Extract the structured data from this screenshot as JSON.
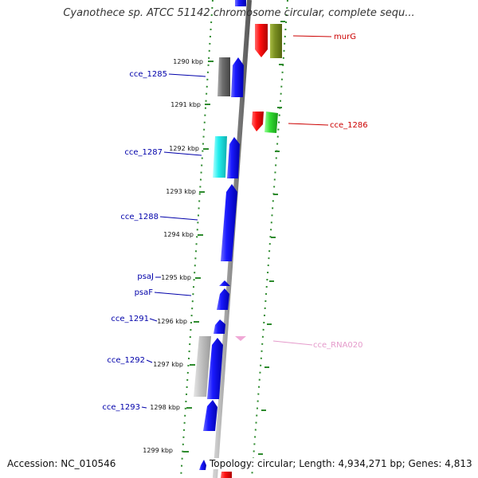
{
  "title": "Cyanothece sp. ATCC 51142 chromosome circular, complete sequ...",
  "footer": {
    "accession": "Accession: NC_010546",
    "summary": "Topology: circular; Length: 4,934,271 bp; Genes: 4,813"
  },
  "colors": {
    "backbone": "#8c8c8c",
    "tick": "#2e8b2e",
    "label_blue": "#0000aa",
    "label_red": "#cc0000",
    "label_pink": "#e59acb"
  },
  "ticks": [
    "1290 kbp",
    "1291 kbp",
    "1292 kbp",
    "1293 kbp",
    "1294 kbp",
    "1295 kbp",
    "1296 kbp",
    "1297 kbp",
    "1298 kbp",
    "1299 kbp"
  ],
  "genes": [
    {
      "name": "murG",
      "color": "#cc0000"
    },
    {
      "name": "cce_1285",
      "color": "#0000aa"
    },
    {
      "name": "cce_1286",
      "color": "#cc0000"
    },
    {
      "name": "cce_1287",
      "color": "#0000aa"
    },
    {
      "name": "cce_1288",
      "color": "#0000aa"
    },
    {
      "name": "psaJ",
      "color": "#0000aa"
    },
    {
      "name": "psaF",
      "color": "#0000aa"
    },
    {
      "name": "cce_1291",
      "color": "#0000aa"
    },
    {
      "name": "cce_1292",
      "color": "#0000aa"
    },
    {
      "name": "cce_1293",
      "color": "#0000aa"
    },
    {
      "name": "cce_RNA020",
      "color": "#e59acb"
    }
  ]
}
